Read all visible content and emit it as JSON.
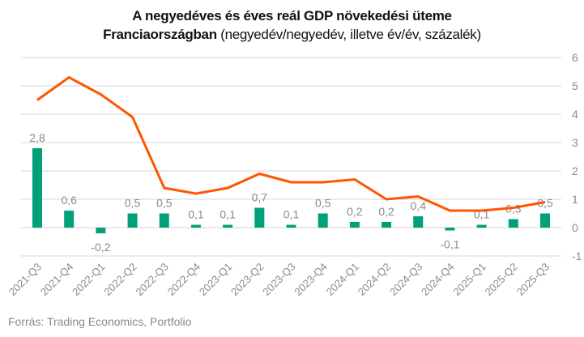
{
  "chart_data": {
    "type": "bar+line",
    "title_line1": "A negyedéves és éves reál GDP növekedési üteme",
    "title_line2_bold": "Franciaországban",
    "title_line2_normal": " (negyedév/negyedév, illetve év/év, százalék)",
    "categories": [
      "2021-Q3",
      "2021-Q4",
      "2022-Q1",
      "2022-Q2",
      "2022-Q3",
      "2022-Q4",
      "2023-Q1",
      "2023-Q2",
      "2023-Q3",
      "2023-Q4",
      "2024-Q1",
      "2024-Q2",
      "2024-Q3",
      "2024-Q4",
      "2025-Q1",
      "2025-Q2",
      "2025-Q3"
    ],
    "series": [
      {
        "name": "negyedév/negyedév",
        "type": "bar",
        "color": "#00A07A",
        "values": [
          2.8,
          0.6,
          -0.2,
          0.5,
          0.5,
          0.1,
          0.1,
          0.7,
          0.1,
          0.5,
          0.2,
          0.2,
          0.4,
          -0.1,
          0.1,
          0.3,
          0.5
        ],
        "labels": [
          "2,8",
          "0,6",
          "-0,2",
          "0,5",
          "0,5",
          "0,1",
          "0,1",
          "0,7",
          "0,1",
          "0,5",
          "0,2",
          "0,2",
          "0,4",
          "-0,1",
          "0,1",
          "0,3",
          "0,5"
        ]
      },
      {
        "name": "év/év",
        "type": "line",
        "color": "#FF5500",
        "values": [
          4.5,
          5.3,
          4.7,
          3.9,
          1.4,
          1.2,
          1.4,
          1.9,
          1.6,
          1.6,
          1.7,
          1.0,
          1.1,
          0.6,
          0.6,
          0.7,
          0.9
        ]
      }
    ],
    "ylim": [
      -1,
      6
    ],
    "yticks": [
      -1,
      0,
      1,
      2,
      3,
      4,
      5,
      6
    ],
    "yaxis_position": "right",
    "grid": true,
    "xlabel": "",
    "ylabel": ""
  },
  "footer": {
    "source": "Forrás: Trading Economics, Portfolio"
  }
}
